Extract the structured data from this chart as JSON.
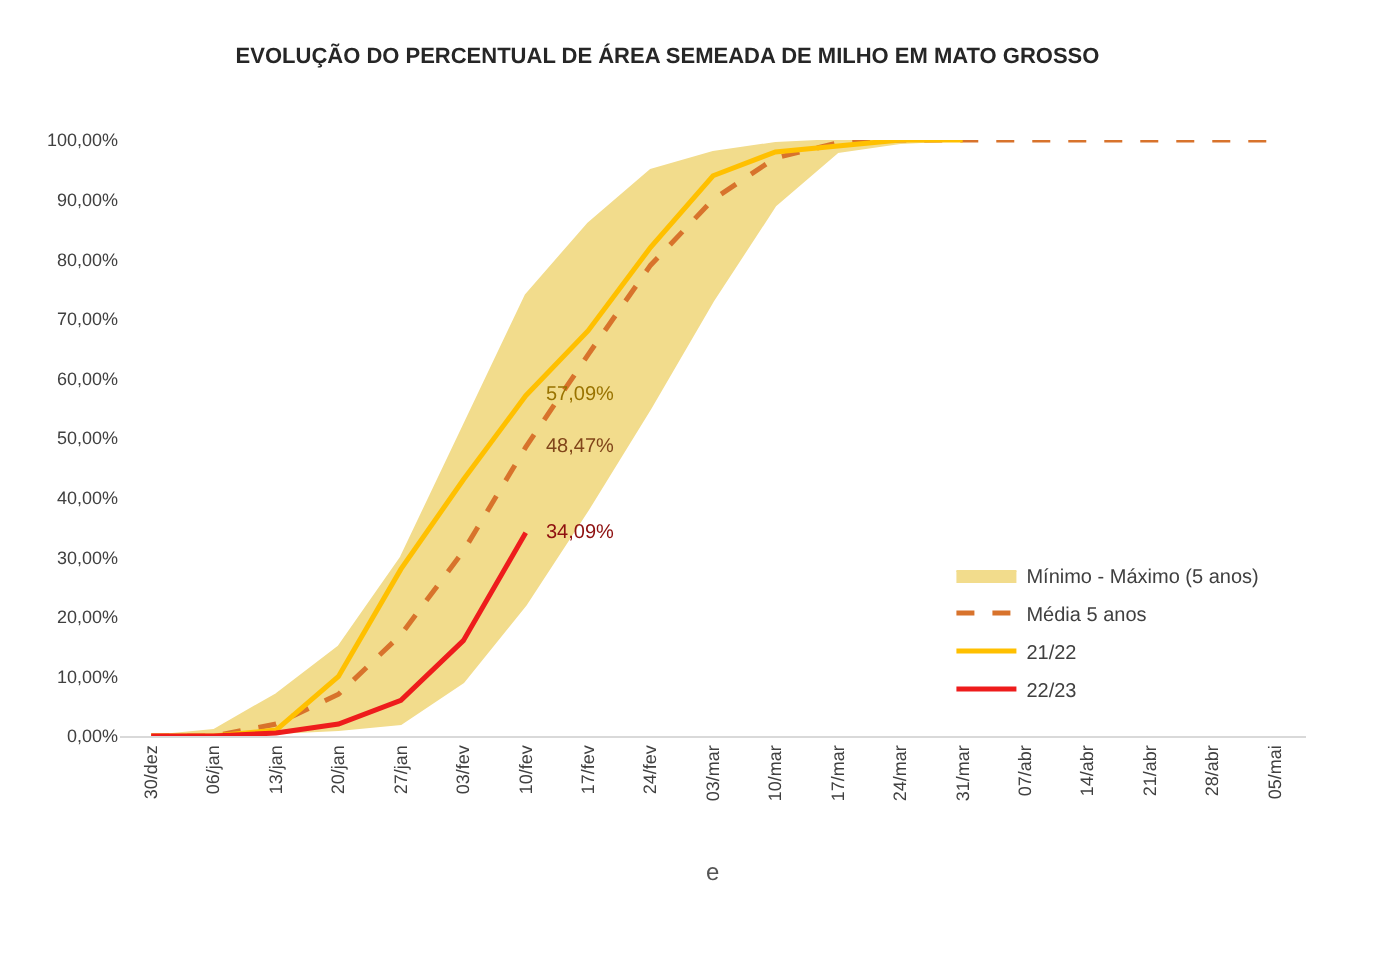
{
  "chart_data": {
    "type": "line",
    "title": "EVOLUÇÃO DO PERCENTUAL DE ÁREA SEMEADA DE MILHO EM MATO GROSSO",
    "categories": [
      "30/dez",
      "06/jan",
      "13/jan",
      "20/jan",
      "27/jan",
      "03/fev",
      "10/fev",
      "17/fev",
      "24/fev",
      "03/mar",
      "10/mar",
      "17/mar",
      "24/mar",
      "31/mar",
      "07/abr",
      "14/abr",
      "21/abr",
      "28/abr",
      "05/mai"
    ],
    "series": [
      {
        "name": "Mínimo - Máximo (5 anos)",
        "type": "area",
        "color": "#f2dc8c",
        "values": [
          null,
          null,
          null,
          null,
          null,
          null,
          null,
          null,
          null,
          null,
          null,
          null,
          null,
          null,
          null,
          null,
          null,
          null,
          null
        ],
        "upper": [
          0,
          1,
          7,
          15,
          30,
          52,
          74,
          86,
          95,
          98,
          99.5,
          100,
          100,
          100,
          null,
          null,
          null,
          null,
          null
        ],
        "lower": [
          0,
          0,
          0.5,
          1,
          2,
          9,
          22,
          38,
          55,
          73,
          89,
          98,
          99.5,
          100,
          null,
          null,
          null,
          null,
          null
        ]
      },
      {
        "name": "Média 5 anos",
        "color": "#d8732c",
        "line_style": "dashed",
        "values": [
          0,
          0,
          2,
          7,
          17,
          31,
          48.47,
          64,
          79,
          90,
          97,
          99.5,
          100,
          100,
          100,
          100,
          100,
          100,
          100
        ],
        "value_labels": [
          null,
          null,
          null,
          null,
          null,
          null,
          "48,47%",
          null,
          null,
          null,
          null,
          null,
          null,
          null,
          null,
          null,
          null,
          null,
          null
        ]
      },
      {
        "name": "21/22",
        "color": "#ffc000",
        "values": [
          0,
          0,
          1,
          10,
          28,
          43,
          57.09,
          68,
          82,
          94,
          98,
          99,
          100,
          100,
          null,
          null,
          null,
          null,
          null
        ],
        "value_labels": [
          null,
          null,
          null,
          null,
          null,
          null,
          "57,09%",
          null,
          null,
          null,
          null,
          null,
          null,
          null,
          null,
          null,
          null,
          null,
          null
        ]
      },
      {
        "name": "22/23",
        "color": "#ee1c1c",
        "values": [
          0,
          0,
          0.5,
          2,
          6,
          16,
          34.09,
          null,
          null,
          null,
          null,
          null,
          null,
          null,
          null,
          null,
          null,
          null,
          null
        ],
        "value_labels": [
          null,
          null,
          null,
          null,
          null,
          null,
          "34,09%",
          null,
          null,
          null,
          null,
          null,
          null,
          null,
          null,
          null,
          null,
          null,
          null
        ]
      }
    ],
    "ylim": [
      0,
      100
    ],
    "yticks": [
      {
        "value": 0,
        "label": "0,00%"
      },
      {
        "value": 10,
        "label": "10,00%"
      },
      {
        "value": 20,
        "label": "20,00%"
      },
      {
        "value": 30,
        "label": "30,00%"
      },
      {
        "value": 40,
        "label": "40,00%"
      },
      {
        "value": 50,
        "label": "50,00%"
      },
      {
        "value": 60,
        "label": "60,00%"
      },
      {
        "value": 70,
        "label": "70,00%"
      },
      {
        "value": 80,
        "label": "80,00%"
      },
      {
        "value": 90,
        "label": "90,00%"
      },
      {
        "value": 100,
        "label": "100,00%"
      }
    ],
    "legend": "bottom right",
    "marker": "none",
    "line_style": "solid",
    "annotations": [
      "e"
    ]
  }
}
